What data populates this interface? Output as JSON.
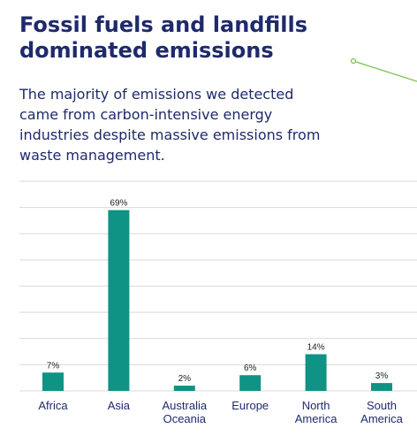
{
  "header": {
    "title": "Fossil fuels and landfills dominated emissions",
    "subtitle": "The majority of emissions we detected came from carbon-intensive energy industries despite massive emissions from waste management."
  },
  "colors": {
    "bar": "#0e9384",
    "title": "#1f2a6b",
    "grid": "#d9d9d9",
    "decor": "#7cc34a"
  },
  "chart_data": {
    "type": "bar",
    "categories": [
      [
        "Africa"
      ],
      [
        "Asia"
      ],
      [
        "Australia",
        "Oceania"
      ],
      [
        "Europe"
      ],
      [
        "North",
        "America"
      ],
      [
        "South",
        "America"
      ]
    ],
    "values": [
      7,
      69,
      2,
      6,
      14,
      3
    ],
    "value_labels": [
      "7%",
      "69%",
      "2%",
      "6%",
      "14%",
      "3%"
    ],
    "ylim": [
      0,
      80
    ],
    "grid": true,
    "title": "",
    "xlabel": "",
    "ylabel": ""
  }
}
